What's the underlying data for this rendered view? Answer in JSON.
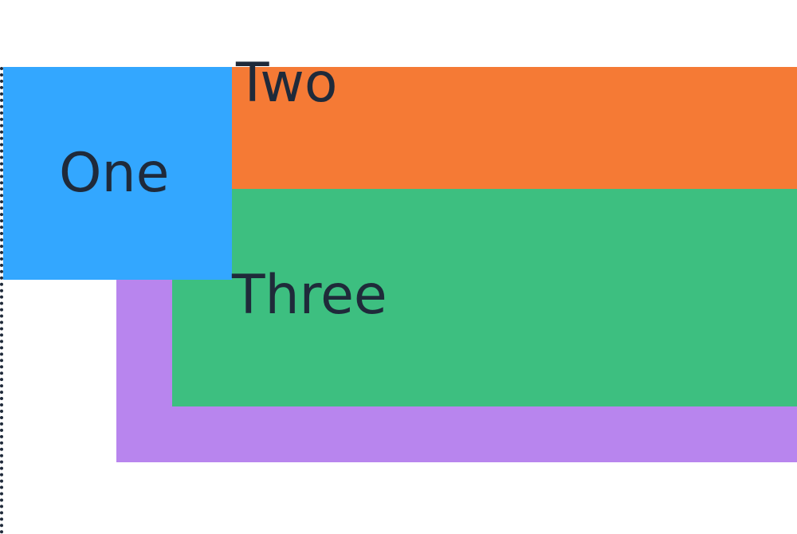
{
  "boxes": {
    "one": {
      "label": "One",
      "color": "#33a7ff"
    },
    "two": {
      "label": "Two",
      "color": "#f57a35"
    },
    "three": {
      "label": "Three",
      "color": "#3dbf80"
    },
    "four": {
      "label": "",
      "color": "#b885ee"
    }
  },
  "colors": {
    "text": "#1f2a3a",
    "container_edge": "#1f2a3a",
    "background": "#ffffff"
  }
}
